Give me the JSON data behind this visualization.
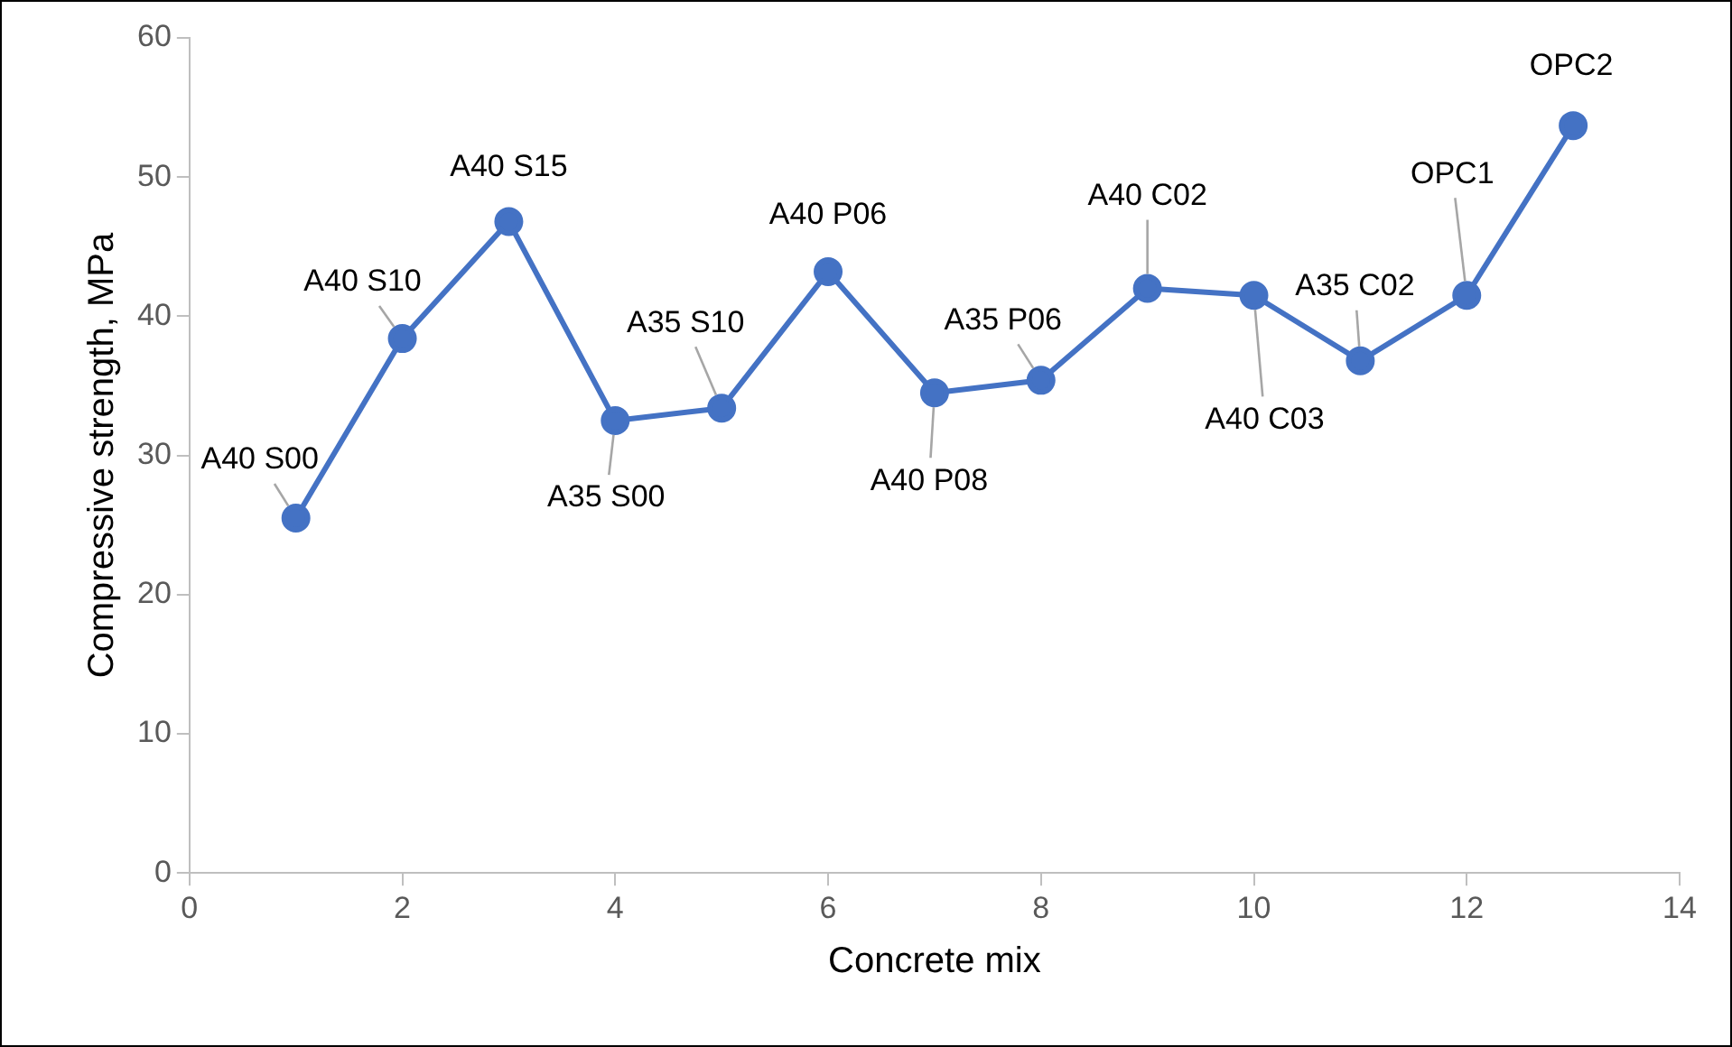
{
  "chart_data": {
    "type": "line",
    "xlabel": "Concrete mix",
    "ylabel": "Compressive strength, MPa",
    "x": [
      1,
      2,
      3,
      4,
      5,
      6,
      7,
      8,
      9,
      10,
      11,
      12,
      13
    ],
    "series": [
      {
        "color": "#4472c4",
        "values": [
          25.5,
          38.4,
          46.8,
          32.5,
          33.4,
          43.2,
          34.5,
          35.4,
          42.0,
          41.5,
          36.8,
          41.5,
          53.7
        ]
      }
    ],
    "xlim": [
      0,
      14
    ],
    "xticks": [
      0,
      2,
      4,
      6,
      8,
      10,
      12,
      14
    ],
    "ylim": [
      0,
      60
    ],
    "yticks": [
      0,
      10,
      20,
      30,
      40,
      50,
      60
    ],
    "grid": false,
    "legend": false,
    "marker": "circle",
    "line_style": "solid",
    "annotations": [
      {
        "text": "A40 S00",
        "x": 1,
        "y": 25.5
      },
      {
        "text": "A40 S10",
        "x": 2,
        "y": 38.4
      },
      {
        "text": "A40 S15",
        "x": 3,
        "y": 46.8
      },
      {
        "text": "A35 S00",
        "x": 4,
        "y": 32.5
      },
      {
        "text": "A35 S10",
        "x": 5,
        "y": 33.4
      },
      {
        "text": "A40 P06",
        "x": 6,
        "y": 43.2
      },
      {
        "text": "A40 P08",
        "x": 7,
        "y": 34.5
      },
      {
        "text": "A35 P06",
        "x": 8,
        "y": 35.4
      },
      {
        "text": "A40 C02",
        "x": 9,
        "y": 42.0
      },
      {
        "text": "A40 C03",
        "x": 10,
        "y": 41.5
      },
      {
        "text": "A35 C02",
        "x": 11,
        "y": 36.8
      },
      {
        "text": "OPC1",
        "x": 12,
        "y": 41.5
      },
      {
        "text": "OPC2",
        "x": 13,
        "y": 53.7
      }
    ]
  }
}
